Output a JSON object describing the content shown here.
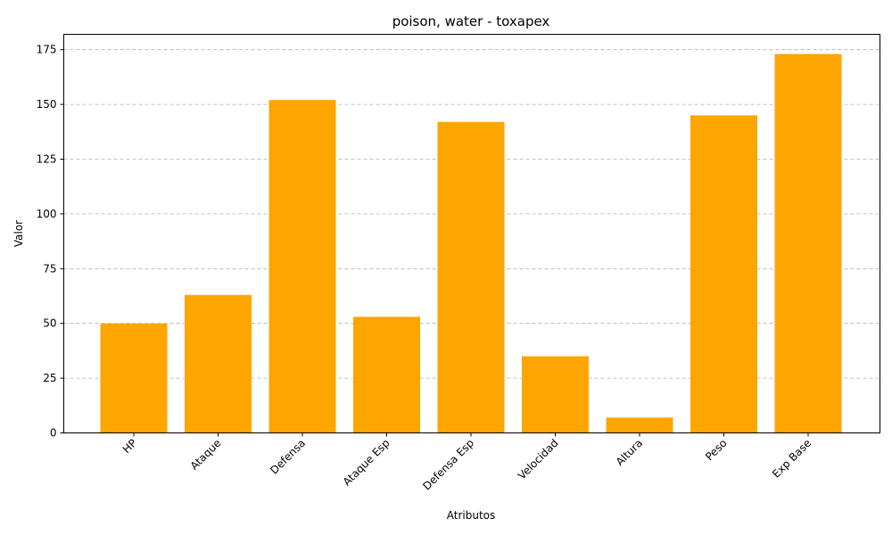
{
  "chart_data": {
    "type": "bar",
    "title": "poison, water - toxapex",
    "xlabel": "Atributos",
    "ylabel": "Valor",
    "categories": [
      "HP",
      "Ataque",
      "Defensa",
      "Ataque Esp",
      "Defensa Esp",
      "Velocidad",
      "Altura",
      "Peso",
      "Exp Base"
    ],
    "values": [
      50,
      63,
      152,
      53,
      142,
      35,
      7,
      145,
      173
    ],
    "ylim": [
      0,
      182
    ],
    "yticks": [
      0,
      25,
      50,
      75,
      100,
      125,
      150,
      175
    ],
    "grid": "y-dashed",
    "bar_color": "#ffa500"
  }
}
